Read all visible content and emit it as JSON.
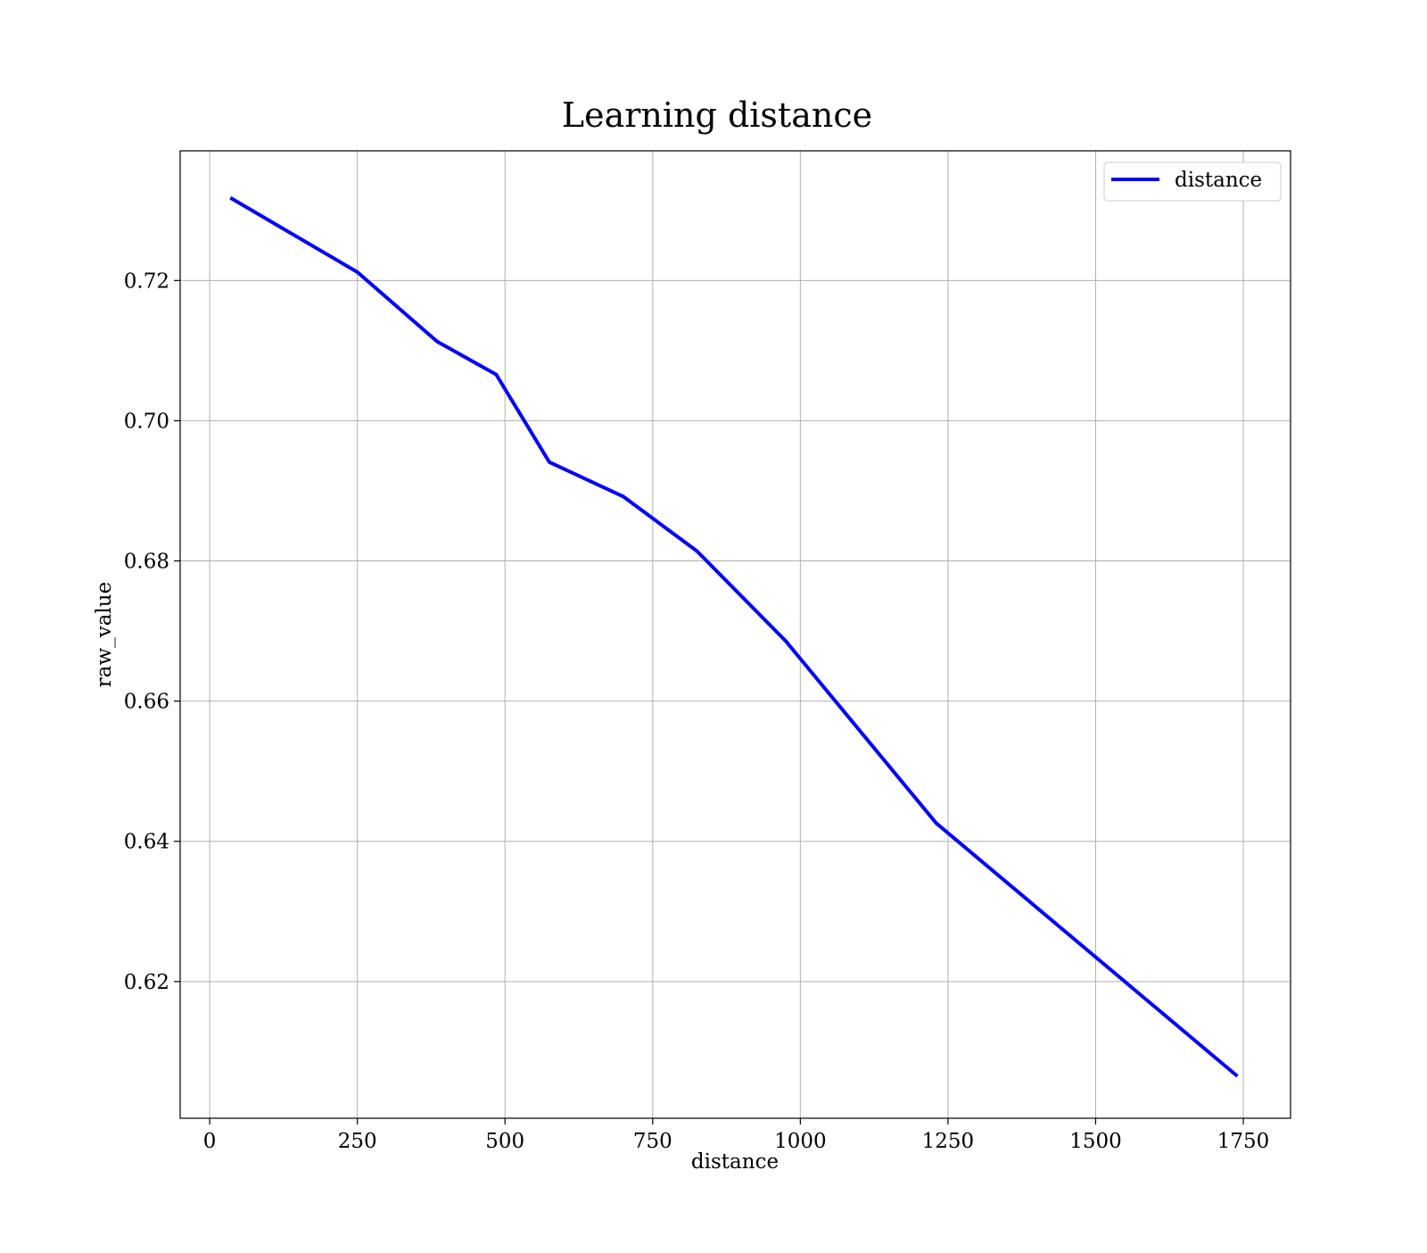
{
  "chart_data": {
    "type": "line",
    "title": "Learning distance",
    "xlabel": "distance",
    "ylabel": "raw_value",
    "xlim": [
      -50,
      1830
    ],
    "ylim": [
      0.6005,
      0.7385
    ],
    "x_ticks": [
      0,
      250,
      500,
      750,
      1000,
      1250,
      1500,
      1750
    ],
    "y_ticks": [
      0.62,
      0.64,
      0.66,
      0.68,
      0.7,
      0.72
    ],
    "grid": true,
    "legend_position": "top-right",
    "series": [
      {
        "name": "distance",
        "color": "#0000ff",
        "x": [
          35,
          250,
          385,
          485,
          575,
          700,
          825,
          975,
          1230,
          1740
        ],
        "y": [
          0.7318,
          0.7212,
          0.7113,
          0.7066,
          0.6941,
          0.6892,
          0.6814,
          0.6686,
          0.6426,
          0.6065
        ]
      }
    ]
  }
}
